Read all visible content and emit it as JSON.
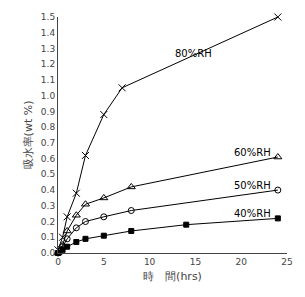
{
  "chart_data": {
    "type": "line",
    "xlabel": "時　間(hrs)",
    "ylabel": "吸水率(wt %)",
    "xlim": [
      0,
      25
    ],
    "ylim": [
      0,
      1.5
    ],
    "xticks": [
      0,
      5,
      10,
      15,
      20,
      25
    ],
    "yticks": [
      {
        "value": 0,
        "label": "0.0"
      },
      0.1,
      0.2,
      0.3,
      0.4,
      0.5,
      0.6,
      0.7,
      0.8,
      0.9,
      {
        "value": 1.0,
        "label": "1.0"
      },
      1.1,
      1.2,
      1.3,
      1.4,
      1.5
    ],
    "grid": false,
    "series": [
      {
        "color": "#000000",
        "marker": "x",
        "line_style": "solid",
        "x": [
          0,
          0.5,
          1,
          2,
          3,
          5,
          7,
          24
        ],
        "values": [
          0.02,
          0.1,
          0.23,
          0.38,
          0.62,
          0.88,
          1.05,
          1.5
        ]
      },
      {
        "color": "#000000",
        "marker": "triangle-open",
        "line_style": "solid",
        "x": [
          0,
          0.5,
          1,
          2,
          3,
          5,
          8,
          24
        ],
        "values": [
          0.0,
          0.05,
          0.14,
          0.24,
          0.31,
          0.35,
          0.42,
          0.61
        ]
      },
      {
        "color": "#000000",
        "marker": "circle-open",
        "line_style": "solid",
        "x": [
          0,
          0.5,
          1,
          2,
          3,
          5,
          8,
          24
        ],
        "values": [
          0.0,
          0.04,
          0.09,
          0.16,
          0.2,
          0.23,
          0.27,
          0.4
        ]
      },
      {
        "color": "#000000",
        "marker": "square",
        "line_style": "solid",
        "x": [
          0,
          0.5,
          1,
          2,
          3,
          5,
          8,
          14,
          24
        ],
        "values": [
          0.0,
          0.02,
          0.04,
          0.07,
          0.09,
          0.11,
          0.14,
          0.18,
          0.22
        ]
      }
    ],
    "annotations": [
      {
        "text": "80%RH",
        "x": 12.5,
        "y": 1.27
      },
      {
        "text": "60%RH",
        "x": 19.0,
        "y": 0.64
      },
      {
        "text": "50%RH",
        "x": 19.0,
        "y": 0.43
      },
      {
        "text": "40%RH",
        "x": 19.0,
        "y": 0.25
      }
    ]
  }
}
